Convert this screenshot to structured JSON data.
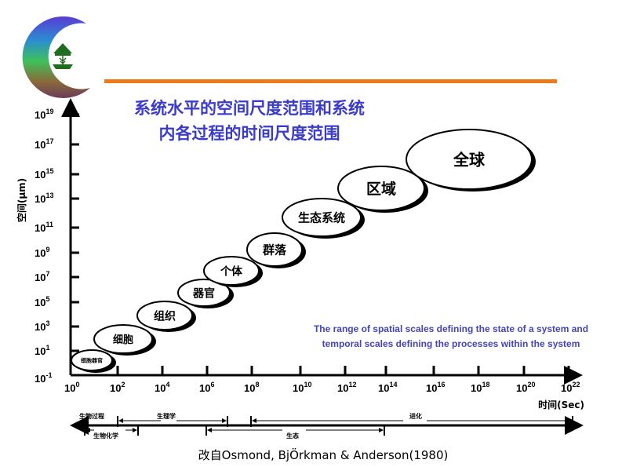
{
  "logo": {
    "name": "crescent-leaf-logo"
  },
  "header": {
    "rule_color": "#f07a1a"
  },
  "title": {
    "line1": "系统水平的空间尺度范围和系统",
    "line2": "内各过程的时间尺度范围",
    "color": "#3a3acc"
  },
  "y_axis": {
    "label": "空间(μm)",
    "ticks": [
      {
        "base": "10",
        "exp": "19"
      },
      {
        "base": "10",
        "exp": "17"
      },
      {
        "base": "10",
        "exp": "15"
      },
      {
        "base": "10",
        "exp": "13"
      },
      {
        "base": "10",
        "exp": "11"
      },
      {
        "base": "10",
        "exp": "9"
      },
      {
        "base": "10",
        "exp": "7"
      },
      {
        "base": "10",
        "exp": "5"
      },
      {
        "base": "10",
        "exp": "3"
      },
      {
        "base": "10",
        "exp": "1"
      },
      {
        "base": "10",
        "exp": "-1"
      }
    ]
  },
  "x_axis": {
    "label": "时间(Sec)",
    "ticks": [
      {
        "base": "10",
        "exp": "0"
      },
      {
        "base": "10",
        "exp": "2"
      },
      {
        "base": "10",
        "exp": "4"
      },
      {
        "base": "10",
        "exp": "6"
      },
      {
        "base": "10",
        "exp": "8"
      },
      {
        "base": "10",
        "exp": "10"
      },
      {
        "base": "10",
        "exp": "12"
      },
      {
        "base": "10",
        "exp": "14"
      },
      {
        "base": "10",
        "exp": "16"
      },
      {
        "base": "10",
        "exp": "18"
      },
      {
        "base": "10",
        "exp": "20"
      },
      {
        "base": "10",
        "exp": "22"
      }
    ]
  },
  "levels": [
    "细胞器官",
    "细胞",
    "组织",
    "器官",
    "个体",
    "群落",
    "生态系统",
    "区域",
    "全球"
  ],
  "caption": {
    "line1": "The range of spatial scales defining the state of a system and",
    "line2": "temporal scales defining the processes within the system",
    "color": "#4444bb"
  },
  "processes": {
    "main": "生物过程",
    "physiology": "生理学",
    "evolution": "进化",
    "biochemistry": "生物化学",
    "ecology": "生态"
  },
  "credit": "改自Osmond, BjÖrkman & Anderson(1980)"
}
